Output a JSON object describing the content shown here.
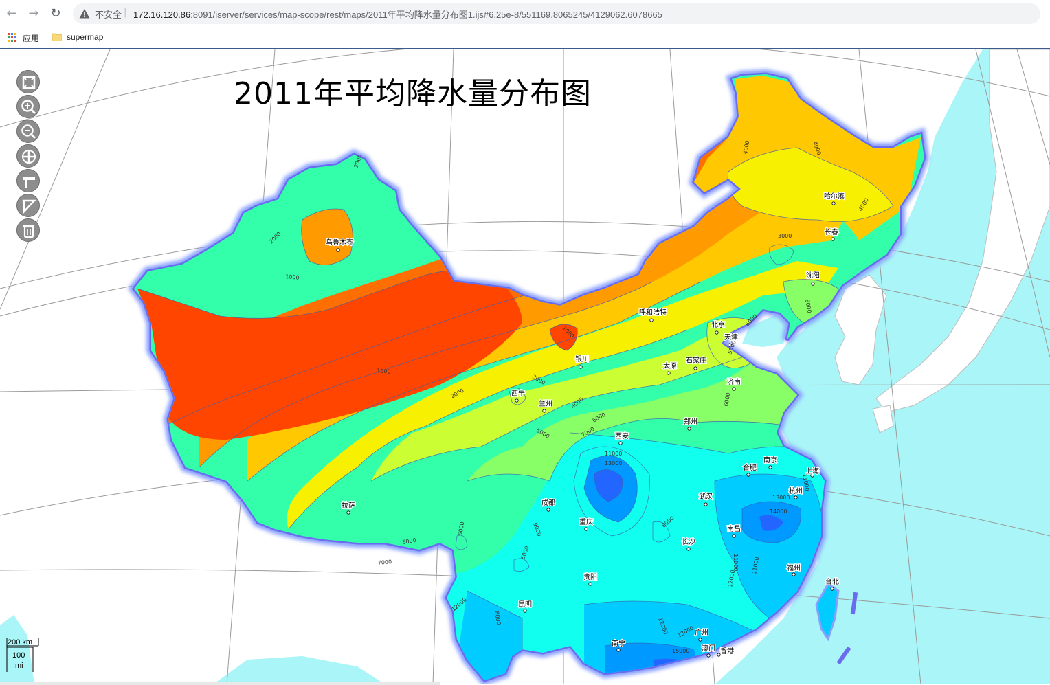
{
  "browser": {
    "security_label": "不安全",
    "url_host": "172.16.120.86",
    "url_rest": ":8091/iserver/services/map-scope/rest/maps/2011年平均降水量分布图1.ijs#6.25e-8/551169.8065245/4129062.6078665",
    "icons": {
      "back": "arrow-left-icon",
      "forward": "arrow-right-icon",
      "reload": "reload-icon",
      "warning": "warning-triangle-icon"
    }
  },
  "bookmarks": [
    {
      "label": "应用",
      "icon": "apps-grid-icon"
    },
    {
      "label": "supermap",
      "icon": "folder-icon"
    }
  ],
  "map": {
    "title": "2011年平均降水量分布图",
    "controls": [
      {
        "name": "full-extent",
        "icon": "full-extent-icon"
      },
      {
        "name": "zoom-in",
        "icon": "zoom-in-icon"
      },
      {
        "name": "zoom-out",
        "icon": "zoom-out-icon"
      },
      {
        "name": "pan",
        "icon": "pan-icon"
      },
      {
        "name": "measure-distance",
        "icon": "measure-distance-icon"
      },
      {
        "name": "measure-area",
        "icon": "measure-area-icon"
      },
      {
        "name": "clear",
        "icon": "trash-icon"
      }
    ],
    "cities": [
      "乌鲁木齐",
      "哈尔滨",
      "长春",
      "沈阳",
      "呼和浩特",
      "北京",
      "天津",
      "银川",
      "石家庄",
      "太原",
      "济南",
      "西宁",
      "兰州",
      "郑州",
      "西安",
      "合肥",
      "南京",
      "上海",
      "武汉",
      "杭州",
      "拉萨",
      "成都",
      "重庆",
      "南昌",
      "长沙",
      "福州",
      "台北",
      "贵阳",
      "昆明",
      "广州",
      "南宁",
      "澳门",
      "香港"
    ],
    "contour_labels": [
      "2000",
      "2000",
      "1000",
      "1000",
      "1000",
      "2000",
      "3000",
      "4000",
      "5000",
      "6000",
      "7000",
      "6000",
      "7000",
      "5000",
      "6000",
      "9000",
      "8000",
      "11000",
      "13000",
      "13000",
      "14000",
      "11000",
      "11000",
      "12000",
      "11000",
      "12000",
      "8000",
      "12000",
      "13000",
      "15000",
      "4000",
      "4000",
      "3000",
      "4000",
      "6000",
      "6000",
      "5000",
      "6000"
    ],
    "scale": {
      "km": "200 km",
      "mi_value": "100",
      "mi_unit": "mi"
    },
    "colors": {
      "ocean": "#aaf5f7",
      "land_outside": "#ffffff",
      "border_glow": "#7a8cf0",
      "class_1": "#ff4500",
      "class_2": "#ff6e00",
      "class_3": "#ff9a00",
      "class_4": "#ffc800",
      "class_5": "#f7f000",
      "class_6": "#ccff33",
      "class_7": "#88ff66",
      "class_8": "#33ffaa",
      "class_9": "#11ffee",
      "class_10": "#00ccff",
      "class_11": "#0099ff",
      "class_12": "#2266ff"
    }
  }
}
